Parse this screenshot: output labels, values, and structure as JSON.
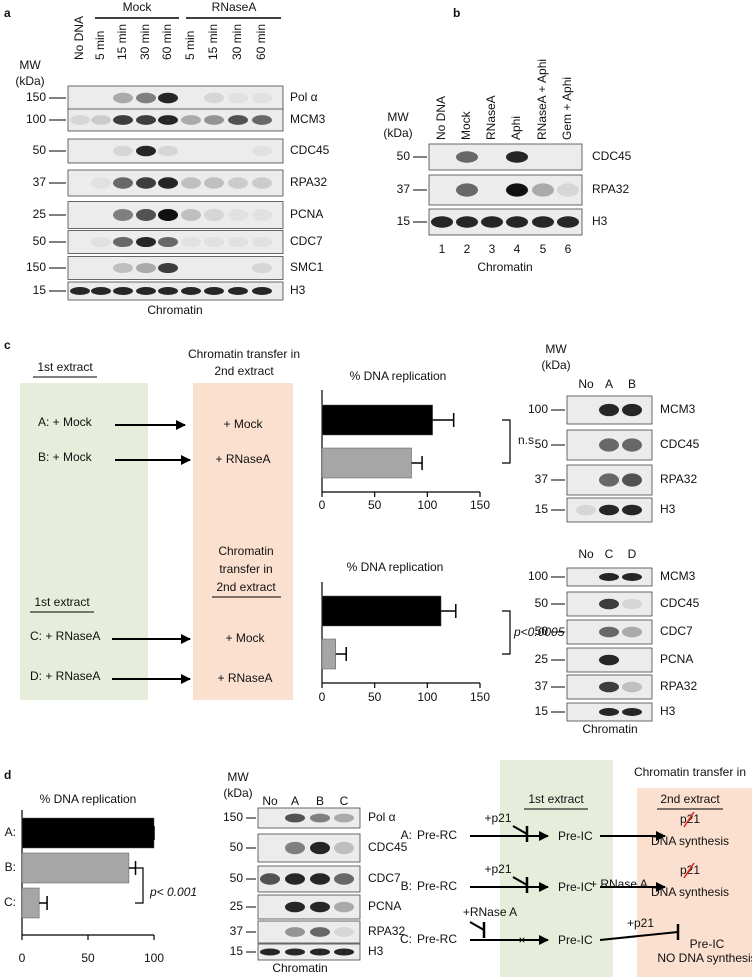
{
  "panel_a": {
    "label": "a",
    "groups": [
      "Mock",
      "RNaseA"
    ],
    "lanes": [
      "No DNA",
      "5 min",
      "15 min",
      "30 min",
      "60 min",
      "5 min",
      "15 min",
      "30 min",
      "60 min"
    ],
    "mw_label": [
      "MW",
      "(kDa)"
    ],
    "rows": [
      {
        "mw": 150,
        "protein": "Pol α"
      },
      {
        "mw": 100,
        "protein": "MCM3"
      },
      {
        "mw": 50,
        "protein": "CDC45"
      },
      {
        "mw": 37,
        "protein": "RPA32"
      },
      {
        "mw": 25,
        "protein": "PCNA"
      },
      {
        "mw": 50,
        "protein": "CDC7"
      },
      {
        "mw": 150,
        "protein": "SMC1"
      },
      {
        "mw": 15,
        "protein": "H3"
      }
    ],
    "footer": "Chromatin"
  },
  "panel_b": {
    "label": "b",
    "lanes": [
      "No DNA",
      "Mock",
      "RNaseA",
      "Aphi",
      "RNaseA + Aphi",
      "Gem + Aphi"
    ],
    "mw_label": [
      "MW",
      "(kDa)"
    ],
    "rows": [
      {
        "mw": 50,
        "protein": "CDC45"
      },
      {
        "mw": 37,
        "protein": "RPA32"
      },
      {
        "mw": 15,
        "protein": "H3"
      }
    ],
    "lane_numbers": [
      1,
      2,
      3,
      4,
      5,
      6
    ],
    "footer": "Chromatin"
  },
  "panel_c": {
    "label": "c",
    "schematic_top": {
      "first_header": "1st extract",
      "second_header": [
        "Chromatin transfer in",
        "2nd extract"
      ],
      "rows": [
        {
          "first": "A: + Mock",
          "second": "+ Mock"
        },
        {
          "first": "B: + Mock",
          "second": "+ RNaseA"
        }
      ]
    },
    "schematic_bottom": {
      "first_header": "1st extract",
      "second_header": [
        "Chromatin",
        "transfer in",
        "2nd extract"
      ],
      "rows": [
        {
          "first": "C: + RNaseA",
          "second": "+ Mock"
        },
        {
          "first": "D: + RNaseA",
          "second": "+ RNaseA"
        }
      ]
    },
    "blot_top": {
      "mw_label": [
        "MW",
        "(kDa)"
      ],
      "lanes": [
        "No",
        "A",
        "B"
      ],
      "rows": [
        {
          "mw": 100,
          "protein": "MCM3"
        },
        {
          "mw": 50,
          "protein": "CDC45"
        },
        {
          "mw": 37,
          "protein": "RPA32"
        },
        {
          "mw": 15,
          "protein": "H3"
        }
      ]
    },
    "blot_bottom": {
      "lanes": [
        "No",
        "C",
        "D"
      ],
      "rows": [
        {
          "mw": 100,
          "protein": "MCM3"
        },
        {
          "mw": 50,
          "protein": "CDC45"
        },
        {
          "mw": 50,
          "protein": "CDC7"
        },
        {
          "mw": 25,
          "protein": "PCNA"
        },
        {
          "mw": 37,
          "protein": "RPA32"
        },
        {
          "mw": 15,
          "protein": "H3"
        }
      ],
      "footer": "Chromatin"
    }
  },
  "panel_d": {
    "label": "d",
    "blot": {
      "mw_label": [
        "MW",
        "(kDa)"
      ],
      "lanes": [
        "No",
        "A",
        "B",
        "C"
      ],
      "rows": [
        {
          "mw": 150,
          "protein": "Pol α"
        },
        {
          "mw": 50,
          "protein": "CDC45"
        },
        {
          "mw": 50,
          "protein": "CDC7"
        },
        {
          "mw": 25,
          "protein": "PCNA"
        },
        {
          "mw": 37,
          "protein": "RPA32"
        },
        {
          "mw": 15,
          "protein": "H3"
        }
      ],
      "footer": "Chromatin"
    },
    "diagram": {
      "first_header": "1st extract",
      "second_header": [
        "Chromatin transfer in",
        "2nd extract"
      ],
      "row_a": {
        "label": "A:",
        "start": "Pre-RC",
        "first_treatment": "+p21",
        "first_result": "Pre-IC",
        "second_marker": "p21",
        "outcome": "DNA synthesis"
      },
      "row_b": {
        "label": "B:",
        "start": "Pre-RC",
        "first_treatment": "+p21",
        "first_result": "Pre-IC",
        "transfer_treatment": "+ RNase A",
        "second_marker": "p21",
        "outcome": "DNA synthesis"
      },
      "row_c": {
        "label": "C:",
        "start": "Pre-RC",
        "first_treatment": "+RNase A",
        "first_result": "Pre-IC",
        "transfer_treatment": "+p21",
        "second_result": "Pre-IC",
        "outcome": "NO DNA synthesis"
      }
    }
  },
  "chart_data": [
    {
      "type": "bar",
      "orientation": "horizontal",
      "title": "% DNA replication",
      "categories": [
        null,
        null
      ],
      "values": [
        105,
        85
      ],
      "errors": [
        20,
        10
      ],
      "colors": [
        "#000000",
        "#a6a6a6"
      ],
      "xlim": [
        0,
        150
      ],
      "xticks": [
        0,
        50,
        100,
        150
      ],
      "annotation": "n.s"
    },
    {
      "type": "bar",
      "orientation": "horizontal",
      "title": "% DNA replication",
      "categories": [
        null,
        null
      ],
      "values": [
        113,
        13
      ],
      "errors": [
        14,
        10
      ],
      "colors": [
        "#000000",
        "#a6a6a6"
      ],
      "xlim": [
        0,
        150
      ],
      "xticks": [
        0,
        50,
        100,
        150
      ],
      "annotation": "p<0.0005"
    },
    {
      "type": "bar",
      "orientation": "horizontal",
      "title": "% DNA replication",
      "categories": [
        "A:",
        "B:",
        "C:"
      ],
      "values": [
        100,
        81,
        13
      ],
      "errors": [
        0,
        5,
        6
      ],
      "colors": [
        "#000000",
        "#a6a6a6",
        "#a6a6a6"
      ],
      "xlim": [
        0,
        100
      ],
      "xticks": [
        0,
        50,
        100
      ],
      "annotation": "p< 0.001"
    }
  ]
}
